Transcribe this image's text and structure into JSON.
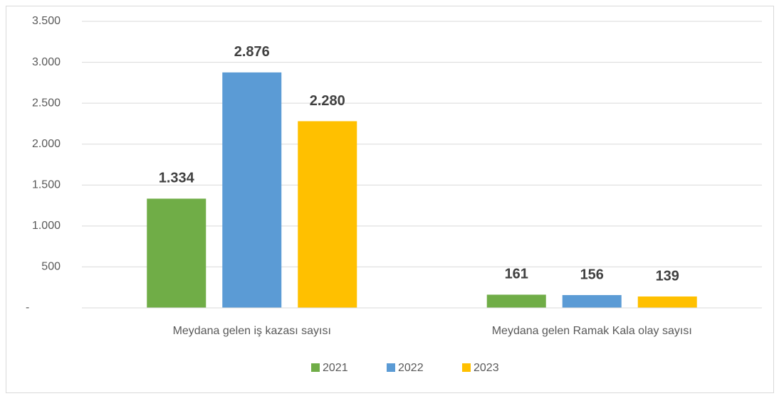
{
  "chart_data": {
    "type": "bar",
    "categories": [
      "Meydana gelen iş kazası sayısı",
      "Meydana gelen Ramak Kala olay sayısı"
    ],
    "series": [
      {
        "name": "2021",
        "color": "#70ad47",
        "values": [
          1334,
          161
        ],
        "value_labels": [
          "1.334",
          "161"
        ]
      },
      {
        "name": "2022",
        "color": "#5b9bd5",
        "values": [
          2876,
          156
        ],
        "value_labels": [
          "2.876",
          "156"
        ]
      },
      {
        "name": "2023",
        "color": "#ffc000",
        "values": [
          2280,
          139
        ],
        "value_labels": [
          "2.280",
          "139"
        ]
      }
    ],
    "ylim": [
      0,
      3500
    ],
    "yticks": [
      {
        "value": 0,
        "label": "-"
      },
      500,
      {
        "value": 1000,
        "label": "1.000"
      },
      {
        "value": 1500,
        "label": "1.500"
      },
      {
        "value": 2000,
        "label": "2.000"
      },
      {
        "value": 2500,
        "label": "2.500"
      },
      {
        "value": 3000,
        "label": "3.000"
      },
      {
        "value": 3500,
        "label": "3.500"
      }
    ],
    "grid": true,
    "legend": "bottom"
  }
}
